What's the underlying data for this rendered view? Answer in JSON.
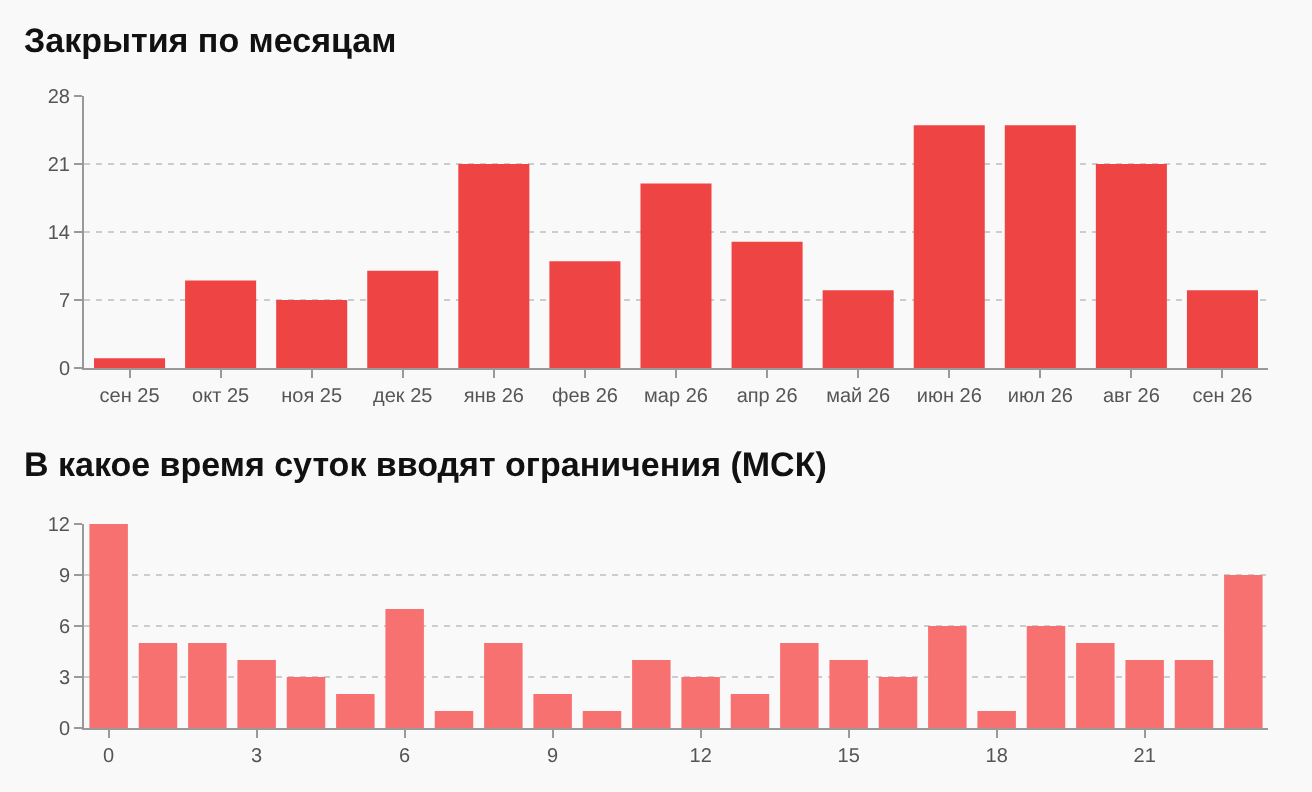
{
  "chart_data": [
    {
      "type": "bar",
      "title": "Закрытия по месяцам",
      "categories": [
        "сен 25",
        "окт 25",
        "ноя 25",
        "дек 25",
        "янв 26",
        "фев 26",
        "мар 26",
        "апр 26",
        "май 26",
        "июн 26",
        "июл 26",
        "авг 26",
        "сен 26"
      ],
      "values": [
        1,
        9,
        7,
        10,
        21,
        11,
        19,
        13,
        8,
        25,
        25,
        21,
        8
      ],
      "color": "#ef4444",
      "ylim": [
        0,
        28
      ],
      "yticks": [
        0,
        7,
        14,
        21,
        28
      ],
      "grid": "y"
    },
    {
      "type": "bar",
      "title": "В какое время суток вводят ограничения (МСК)",
      "x": [
        0,
        1,
        2,
        3,
        4,
        5,
        6,
        7,
        8,
        9,
        10,
        11,
        12,
        13,
        14,
        15,
        16,
        17,
        18,
        19,
        20,
        21,
        22,
        23
      ],
      "values": [
        12,
        5,
        5,
        4,
        3,
        2,
        7,
        1,
        5,
        2,
        1,
        4,
        3,
        2,
        5,
        4,
        3,
        6,
        1,
        6,
        5,
        4,
        4,
        9
      ],
      "color": "#f87171",
      "xlim": [
        -0.5,
        23.5
      ],
      "xticks": [
        0,
        3,
        6,
        9,
        12,
        15,
        18,
        21
      ],
      "ylim": [
        0,
        12
      ],
      "yticks": [
        0,
        3,
        6,
        9,
        12
      ],
      "grid": "y"
    }
  ]
}
